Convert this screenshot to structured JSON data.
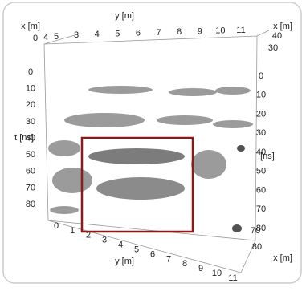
{
  "figure": {
    "axes": [
      {
        "label": "y [m]",
        "ticks": [
          "3",
          "4",
          "5",
          "6",
          "7",
          "8",
          "9",
          "10",
          "11"
        ]
      },
      {
        "label": "x [m]",
        "ticks": [
          "0",
          "4",
          "5"
        ]
      },
      {
        "label": "x [m]",
        "ticks": [
          "40",
          "30"
        ]
      },
      {
        "label": "t [ns]",
        "ticks": [
          "0",
          "10",
          "20",
          "30",
          "40",
          "50",
          "60",
          "70",
          "80"
        ]
      },
      {
        "label": "[ns]",
        "ticks": [
          "0",
          "10",
          "20",
          "30",
          "40",
          "50",
          "60",
          "70",
          "80"
        ]
      },
      {
        "label": "y [m]",
        "ticks": [
          "0",
          "1",
          "2",
          "3",
          "4",
          "5",
          "6",
          "7",
          "8",
          "9",
          "10",
          "11"
        ]
      },
      {
        "label": "x [m]",
        "ticks": [
          "70",
          "80"
        ]
      }
    ]
  }
}
